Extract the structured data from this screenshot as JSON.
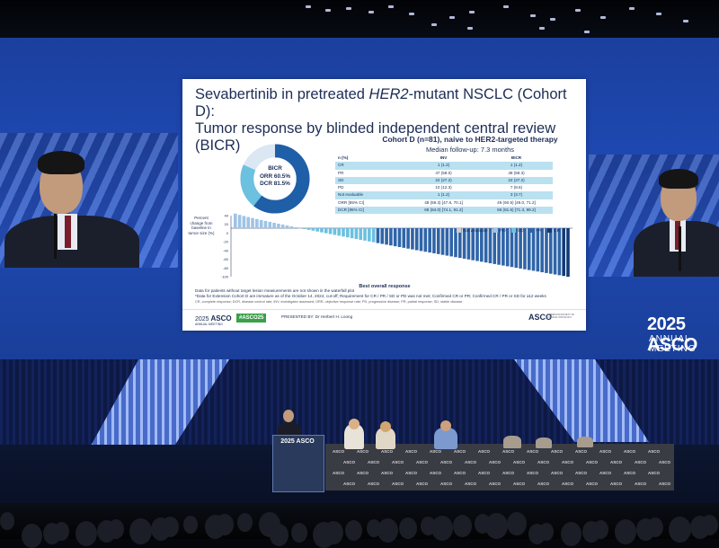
{
  "slide": {
    "title_line1_pre": "Sevabertinib in pretreated ",
    "title_line1_em": "HER2",
    "title_line1_post": "-mutant NSCLC (Cohort D):",
    "title_line2": "Tumor response by blinded independent central review (BICR)",
    "donut": {
      "label": "BICR",
      "orr": "ORR 60.5%",
      "dcr": "DCR 81.5%",
      "orr_value": 60.5,
      "dcr_value": 81.5,
      "colors": {
        "orr": "#1f5fa8",
        "dcr": "#6cc0e0",
        "rest": "#dbe7f2"
      }
    },
    "cohort_heading": "Cohort D (n=81), naive to HER2-targeted therapy",
    "cohort_sub": "Median follow-up: 7.3 months",
    "table": {
      "headers": [
        "n (%)",
        "INV",
        "BICR"
      ],
      "rows": [
        [
          "CR",
          "1 (1.2)",
          "1 (1.2)"
        ],
        [
          "PR",
          "47 (58.0)",
          "48 (59.3)"
        ],
        [
          "SD",
          "22 (27.2)",
          "22 (27.2)"
        ],
        [
          "PD",
          "10 (12.3)",
          "7 (8.6)"
        ],
        [
          "Not evaluable",
          "1 (1.2)",
          "3 (3.7)"
        ],
        [
          "ORR [95% CI]",
          "48 (59.3) [47.8, 70.1]",
          "49 (60.5) [49.0, 71.2]"
        ],
        [
          "DCR [95% CI]",
          "68 (84.0) [74.1, 91.2]",
          "66 (81.5) [71.3, 89.2]"
        ]
      ]
    },
    "waterfall": {
      "ylabel": "Percent change from baseline in tumor size (%)",
      "xlabel": "Best overall response",
      "legend": [
        "Not available",
        "PD",
        "SD",
        "PR",
        "CR"
      ],
      "legend_colors": [
        "#cccccc",
        "#9fc3e6",
        "#6cc0e0",
        "#2f64a8",
        "#123a78"
      ],
      "yticks": [
        "40",
        "20",
        "0",
        "-20",
        "-40",
        "-60",
        "-80",
        "-100"
      ]
    },
    "footnote1": "Data for patients without target lesion measurements are not shown in the waterfall plot",
    "footnote2": "*Data for Extension Cohort D are immature as of the October 14, 2024, cut-off; Requirement for CR / PR / SD or PD was not met; Confirmed CR or PR; Confirmed CR / PR or SD for ≥12 weeks",
    "footnote3": "CR, complete response; DCR, disease control rate; INV, investigator assessed; ORR, objective response rate; PD, progressive disease; PR, partial response; SD, stable disease",
    "asco_left": "ASCO",
    "asco_left_pre": "2025",
    "asco_left_sub": "ANNUAL MEETING",
    "hashtag": "#ASCO25",
    "presenter": "PRESENTED BY: Dr Herbert H. Loong",
    "asco_right": "ASCO",
    "asco_right_sub": "AMERICAN SOCIETY OF CLINICAL ONCOLOGY"
  },
  "banner": {
    "year_asco": "2025 ASCO",
    "sub": "ANNUAL MEETING"
  },
  "stage": {
    "podium_logo": "2025 ASCO",
    "table_logo": "ASCO"
  }
}
